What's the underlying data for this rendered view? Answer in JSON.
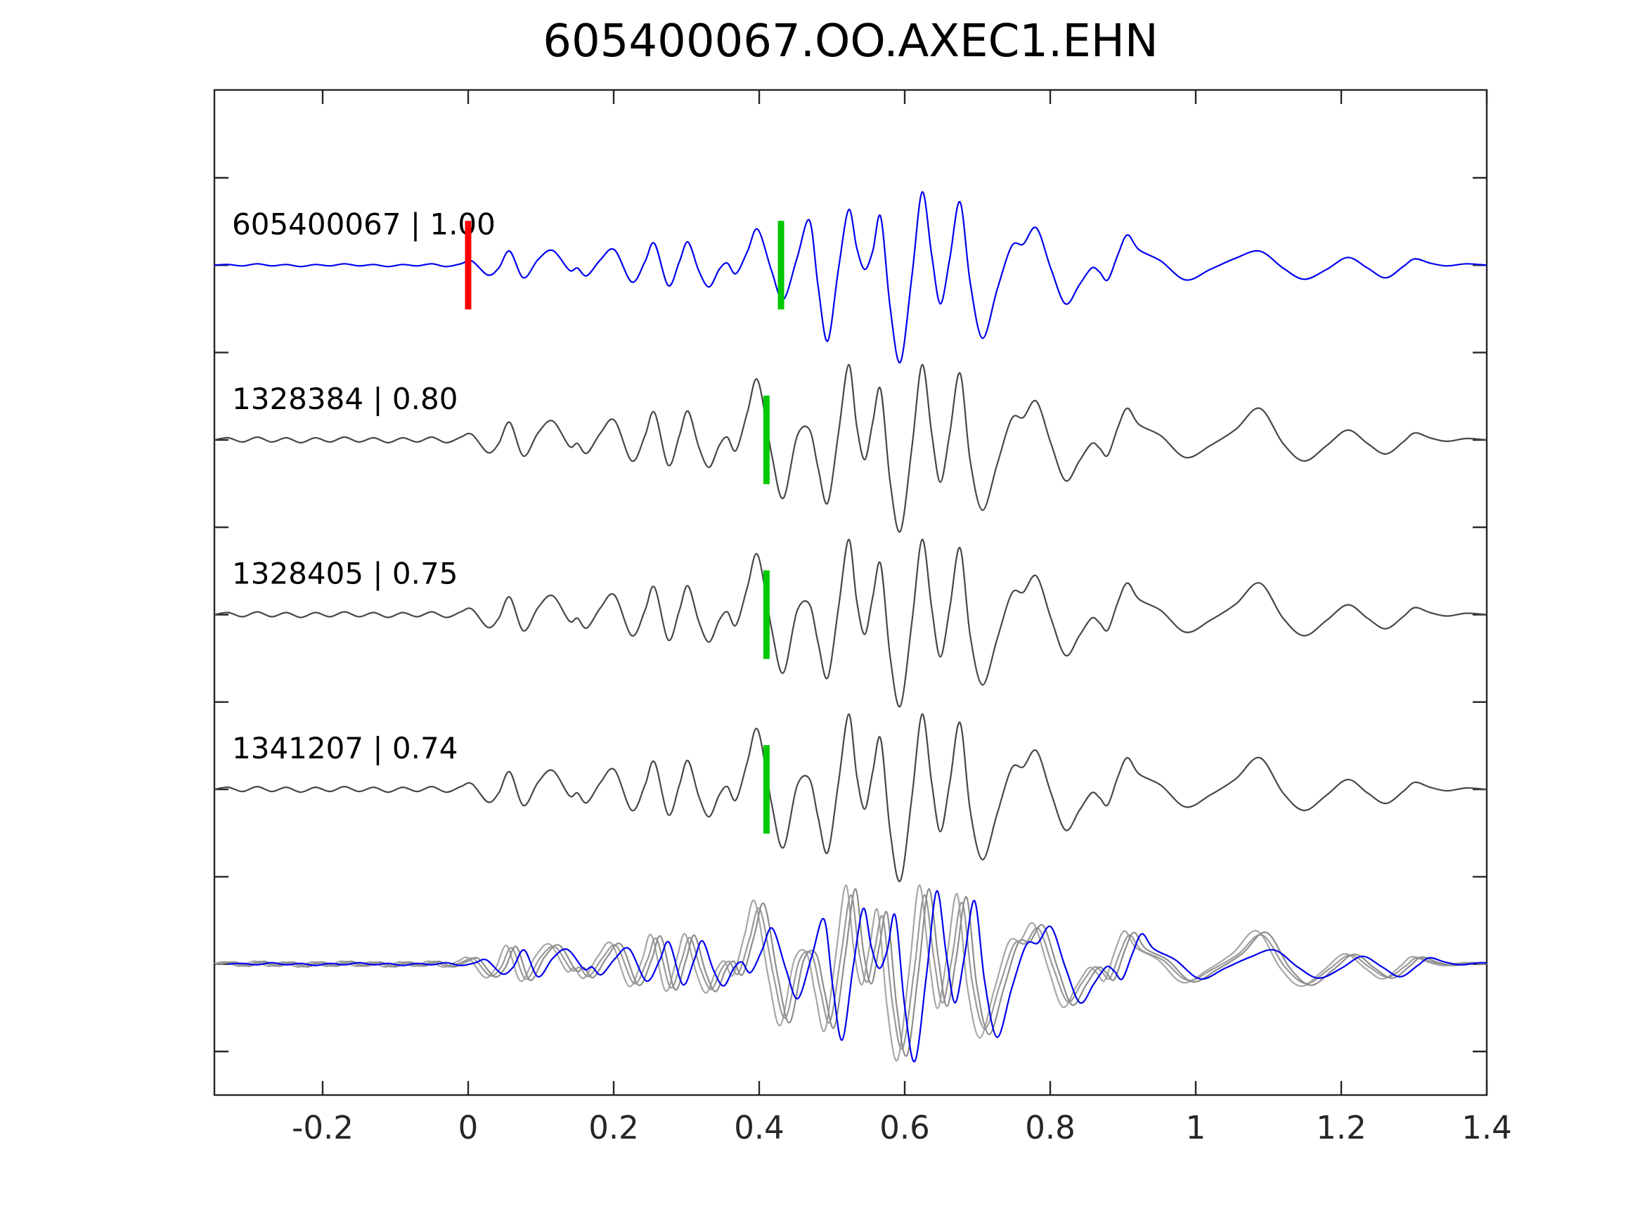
{
  "title": "605400067.OO.AXEC1.EHN",
  "colors": {
    "background": "#ffffff",
    "axis": "#262626",
    "detection_trace": "#0000ee",
    "template_trace": "#474747",
    "pick_red": "#ff0000",
    "pick_green": "#00c800",
    "overlay_grays": [
      "#a6a6a6",
      "#999999",
      "#8d8d8d"
    ]
  },
  "chart_data": {
    "type": "line",
    "title": "605400067.OO.AXEC1.EHN",
    "xlabel": "",
    "ylabel": "",
    "xlim": [
      -0.35,
      1.4
    ],
    "grid": false,
    "legend": "none",
    "x_ticks": [
      {
        "v": -0.2,
        "label": "-0.2"
      },
      {
        "v": 0,
        "label": "0"
      },
      {
        "v": 0.2,
        "label": "0.2"
      },
      {
        "v": 0.4,
        "label": "0.4"
      },
      {
        "v": 0.6,
        "label": "0.6"
      },
      {
        "v": 0.8,
        "label": "0.8"
      },
      {
        "v": 1,
        "label": "1"
      },
      {
        "v": 1.2,
        "label": "1.2"
      },
      {
        "v": 1.4,
        "label": "1.4"
      }
    ],
    "amp_units": "normalized plot px, positive = up",
    "waveforms": {
      "detection": [
        [
          -0.349,
          0
        ],
        [
          -0.33,
          1
        ],
        [
          -0.31,
          -1
        ],
        [
          -0.29,
          2
        ],
        [
          -0.27,
          -1
        ],
        [
          -0.25,
          1
        ],
        [
          -0.23,
          -2
        ],
        [
          -0.21,
          1
        ],
        [
          -0.19,
          -1
        ],
        [
          -0.17,
          2
        ],
        [
          -0.15,
          -1
        ],
        [
          -0.13,
          1
        ],
        [
          -0.11,
          -2
        ],
        [
          -0.09,
          1
        ],
        [
          -0.07,
          -1
        ],
        [
          -0.05,
          2
        ],
        [
          -0.03,
          -2
        ],
        [
          -0.01,
          2
        ],
        [
          0.005,
          6
        ],
        [
          0.027,
          -14
        ],
        [
          0.042,
          -4
        ],
        [
          0.057,
          20
        ],
        [
          0.076,
          -18
        ],
        [
          0.096,
          8
        ],
        [
          0.116,
          21
        ],
        [
          0.139,
          -7
        ],
        [
          0.15,
          -4
        ],
        [
          0.163,
          -15
        ],
        [
          0.182,
          8
        ],
        [
          0.201,
          22
        ],
        [
          0.225,
          -24
        ],
        [
          0.243,
          5
        ],
        [
          0.256,
          31
        ],
        [
          0.275,
          -29
        ],
        [
          0.29,
          4
        ],
        [
          0.302,
          33
        ],
        [
          0.317,
          -8
        ],
        [
          0.331,
          -31
        ],
        [
          0.345,
          -6
        ],
        [
          0.356,
          3
        ],
        [
          0.368,
          -12
        ],
        [
          0.384,
          20
        ],
        [
          0.398,
          51
        ],
        [
          0.417,
          -8
        ],
        [
          0.433,
          -49
        ],
        [
          0.452,
          10
        ],
        [
          0.469,
          64
        ],
        [
          0.481,
          -30
        ],
        [
          0.494,
          -108
        ],
        [
          0.509,
          -5
        ],
        [
          0.523,
          79
        ],
        [
          0.534,
          25
        ],
        [
          0.545,
          -6
        ],
        [
          0.556,
          20
        ],
        [
          0.567,
          69
        ],
        [
          0.58,
          -60
        ],
        [
          0.594,
          -138
        ],
        [
          0.61,
          -15
        ],
        [
          0.624,
          104
        ],
        [
          0.637,
          15
        ],
        [
          0.649,
          -55
        ],
        [
          0.662,
          10
        ],
        [
          0.676,
          90
        ],
        [
          0.69,
          -25
        ],
        [
          0.707,
          -104
        ],
        [
          0.727,
          -35
        ],
        [
          0.747,
          27
        ],
        [
          0.763,
          30
        ],
        [
          0.781,
          53
        ],
        [
          0.801,
          -5
        ],
        [
          0.821,
          -55
        ],
        [
          0.84,
          -28
        ],
        [
          0.857,
          -4
        ],
        [
          0.868,
          -10
        ],
        [
          0.879,
          -21
        ],
        [
          0.893,
          15
        ],
        [
          0.906,
          43
        ],
        [
          0.922,
          22
        ],
        [
          0.952,
          6
        ],
        [
          0.986,
          -21
        ],
        [
          1.02,
          -6
        ],
        [
          1.055,
          10
        ],
        [
          1.088,
          20
        ],
        [
          1.12,
          -4
        ],
        [
          1.149,
          -20
        ],
        [
          1.18,
          -6
        ],
        [
          1.209,
          11
        ],
        [
          1.236,
          -4
        ],
        [
          1.261,
          -18
        ],
        [
          1.285,
          -2
        ],
        [
          1.301,
          9
        ],
        [
          1.322,
          3
        ],
        [
          1.345,
          -1
        ],
        [
          1.372,
          2
        ],
        [
          1.4,
          0
        ]
      ],
      "template": [
        [
          -0.349,
          0
        ],
        [
          -0.33,
          3
        ],
        [
          -0.31,
          -3
        ],
        [
          -0.29,
          4
        ],
        [
          -0.27,
          -3
        ],
        [
          -0.25,
          3
        ],
        [
          -0.23,
          -4
        ],
        [
          -0.21,
          3
        ],
        [
          -0.19,
          -3
        ],
        [
          -0.17,
          4
        ],
        [
          -0.15,
          -3
        ],
        [
          -0.13,
          3
        ],
        [
          -0.11,
          -4
        ],
        [
          -0.09,
          3
        ],
        [
          -0.07,
          -3
        ],
        [
          -0.05,
          4
        ],
        [
          -0.03,
          -4
        ],
        [
          -0.01,
          4
        ],
        [
          0.005,
          8
        ],
        [
          0.027,
          -18
        ],
        [
          0.042,
          -5
        ],
        [
          0.057,
          25
        ],
        [
          0.076,
          -23
        ],
        [
          0.096,
          10
        ],
        [
          0.116,
          27
        ],
        [
          0.139,
          -9
        ],
        [
          0.15,
          -5
        ],
        [
          0.163,
          -19
        ],
        [
          0.182,
          10
        ],
        [
          0.201,
          28
        ],
        [
          0.225,
          -30
        ],
        [
          0.243,
          6
        ],
        [
          0.256,
          39
        ],
        [
          0.275,
          -36
        ],
        [
          0.29,
          5
        ],
        [
          0.302,
          41
        ],
        [
          0.317,
          -10
        ],
        [
          0.331,
          -39
        ],
        [
          0.345,
          -8
        ],
        [
          0.356,
          4
        ],
        [
          0.368,
          -15
        ],
        [
          0.384,
          40
        ],
        [
          0.398,
          85
        ],
        [
          0.417,
          -20
        ],
        [
          0.433,
          -83
        ],
        [
          0.452,
          5
        ],
        [
          0.469,
          15
        ],
        [
          0.481,
          -40
        ],
        [
          0.494,
          -90
        ],
        [
          0.509,
          10
        ],
        [
          0.523,
          107
        ],
        [
          0.534,
          20
        ],
        [
          0.545,
          -28
        ],
        [
          0.556,
          25
        ],
        [
          0.567,
          72
        ],
        [
          0.58,
          -60
        ],
        [
          0.594,
          -130
        ],
        [
          0.61,
          -10
        ],
        [
          0.624,
          107
        ],
        [
          0.637,
          10
        ],
        [
          0.649,
          -60
        ],
        [
          0.662,
          10
        ],
        [
          0.676,
          95
        ],
        [
          0.69,
          -30
        ],
        [
          0.707,
          -100
        ],
        [
          0.727,
          -35
        ],
        [
          0.747,
          30
        ],
        [
          0.763,
          32
        ],
        [
          0.781,
          55
        ],
        [
          0.801,
          -5
        ],
        [
          0.821,
          -58
        ],
        [
          0.84,
          -30
        ],
        [
          0.857,
          -5
        ],
        [
          0.868,
          -12
        ],
        [
          0.879,
          -22
        ],
        [
          0.893,
          18
        ],
        [
          0.906,
          45
        ],
        [
          0.922,
          22
        ],
        [
          0.952,
          6
        ],
        [
          0.986,
          -25
        ],
        [
          1.02,
          -8
        ],
        [
          1.055,
          15
        ],
        [
          1.088,
          45
        ],
        [
          1.12,
          -5
        ],
        [
          1.149,
          -30
        ],
        [
          1.18,
          -8
        ],
        [
          1.209,
          14
        ],
        [
          1.236,
          -5
        ],
        [
          1.261,
          -20
        ],
        [
          1.285,
          -3
        ],
        [
          1.301,
          10
        ],
        [
          1.322,
          3
        ],
        [
          1.345,
          -2
        ],
        [
          1.372,
          2
        ],
        [
          1.4,
          0
        ]
      ]
    },
    "series": [
      {
        "name": "605400067 | 1.00",
        "row": 0,
        "color": "#0000ee",
        "waveform": "detection",
        "dt": 0,
        "scale": 1,
        "picks": [
          {
            "t": 0.0,
            "color": "#ff0000"
          },
          {
            "t": 0.43,
            "color": "#00c800"
          }
        ]
      },
      {
        "name": "1328384 | 0.80",
        "row": 1,
        "color": "#474747",
        "waveform": "template",
        "dt": 0,
        "scale": 1,
        "picks": [
          {
            "t": 0.41,
            "color": "#00c800"
          }
        ]
      },
      {
        "name": "1328405 | 0.75",
        "row": 2,
        "color": "#474747",
        "waveform": "template",
        "dt": 0,
        "scale": 1,
        "picks": [
          {
            "t": 0.41,
            "color": "#00c800"
          }
        ]
      },
      {
        "name": "1341207 | 0.74",
        "row": 3,
        "color": "#474747",
        "waveform": "template",
        "dt": 0,
        "scale": 1,
        "picks": [
          {
            "t": 0.41,
            "color": "#00c800"
          }
        ]
      },
      {
        "name": "",
        "row": 4,
        "overlay": true,
        "picks": [],
        "components": [
          {
            "waveform": "template",
            "color": "#a6a6a6",
            "dt": -0.004,
            "scale": 1.05
          },
          {
            "waveform": "template",
            "color": "#999999",
            "dt": 0.003,
            "scale": 0.92
          },
          {
            "waveform": "template",
            "color": "#8d8d8d",
            "dt": 0.009,
            "scale": 1.0
          },
          {
            "waveform": "detection",
            "color": "#0000ee",
            "dt": 0.02,
            "scale": 1.0
          }
        ]
      }
    ]
  }
}
